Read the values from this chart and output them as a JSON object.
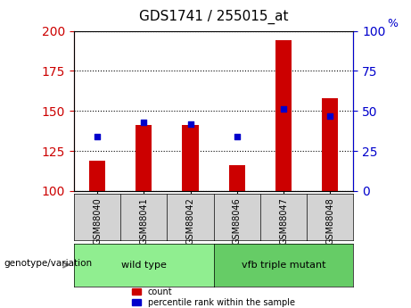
{
  "title": "GDS1741 / 255015_at",
  "samples": [
    "GSM88040",
    "GSM88041",
    "GSM88042",
    "GSM88046",
    "GSM88047",
    "GSM88048"
  ],
  "count_values": [
    119,
    141,
    141,
    116,
    194,
    158
  ],
  "percentile_values": [
    34,
    43,
    42,
    34,
    51,
    47
  ],
  "groups": [
    {
      "label": "wild type",
      "color": "#90EE90"
    },
    {
      "label": "vfb triple mutant",
      "color": "#66CC66"
    }
  ],
  "ylim_left": [
    100,
    200
  ],
  "ylim_right": [
    0,
    100
  ],
  "yticks_left": [
    100,
    125,
    150,
    175,
    200
  ],
  "yticks_right": [
    0,
    25,
    50,
    75,
    100
  ],
  "bar_color": "#CC0000",
  "dot_color": "#0000CC",
  "bar_width": 0.35,
  "group_label": "genotype/variation",
  "legend_count": "count",
  "legend_percentile": "percentile rank within the sample",
  "left_axis_color": "#CC0000",
  "right_axis_color": "#0000CC"
}
